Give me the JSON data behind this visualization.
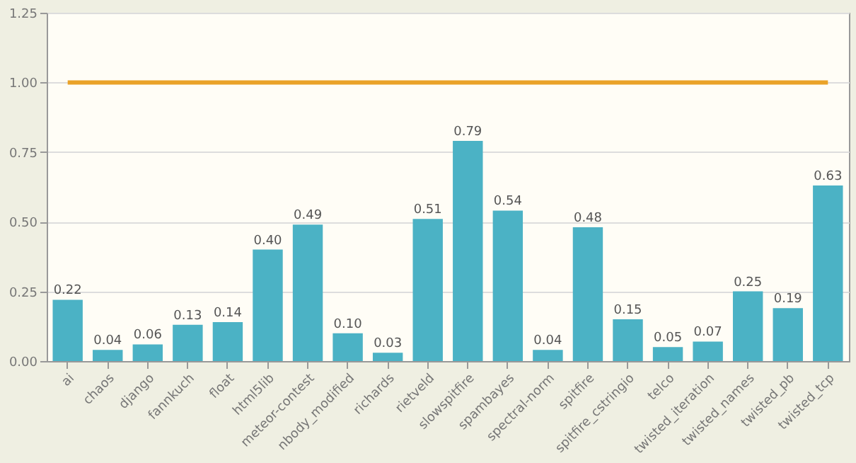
{
  "chart_data": {
    "type": "bar",
    "categories": [
      "ai",
      "chaos",
      "django",
      "fannkuch",
      "float",
      "html5lib",
      "meteor-contest",
      "nbody_modified",
      "richards",
      "rietveld",
      "slowspitfire",
      "spambayes",
      "spectral-norm",
      "spitfire",
      "spitfire_cstringio",
      "telco",
      "twisted_iteration",
      "twisted_names",
      "twisted_pb",
      "twisted_tcp"
    ],
    "series": [
      {
        "color": "#4bb2c5",
        "values": [
          0.22,
          0.04,
          0.06,
          0.13,
          0.14,
          0.4,
          0.49,
          0.1,
          0.03,
          0.51,
          0.79,
          0.54,
          0.04,
          0.48,
          0.15,
          0.05,
          0.07,
          0.25,
          0.19,
          0.63
        ],
        "value_labels": [
          "0.22",
          "0.04",
          "0.06",
          "0.13",
          "0.14",
          "0.40",
          "0.49",
          "0.10",
          "0.03",
          "0.51",
          "0.79",
          "0.54",
          "0.04",
          "0.48",
          "0.15",
          "0.05",
          "0.07",
          "0.25",
          "0.19",
          "0.63"
        ]
      },
      {
        "type": "line",
        "color": "#eaa228",
        "values": [
          1,
          1,
          1,
          1,
          1,
          1,
          1,
          1,
          1,
          1,
          1,
          1,
          1,
          1,
          1,
          1,
          1,
          1,
          1,
          1
        ]
      }
    ],
    "ylim": [
      0,
      1.25
    ],
    "yticks": [
      {
        "value": 0,
        "label": "0.00"
      },
      {
        "value": 0.25,
        "label": "0.25"
      },
      {
        "value": 0.5,
        "label": "0.50"
      },
      {
        "value": 0.75,
        "label": "0.75"
      },
      {
        "value": 1,
        "label": "1.00"
      },
      {
        "value": 1.25,
        "label": "1.25"
      }
    ],
    "grid": "y"
  }
}
